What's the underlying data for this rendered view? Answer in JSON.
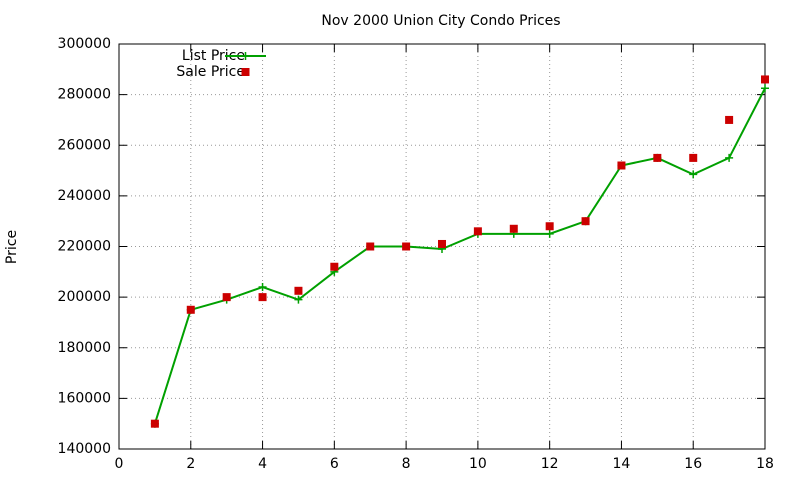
{
  "chart_data": {
    "type": "line",
    "title": "Nov 2000 Union City Condo Prices",
    "y_label": "Price",
    "x": [
      1,
      2,
      3,
      4,
      5,
      6,
      7,
      8,
      9,
      10,
      11,
      12,
      13,
      14,
      15,
      16,
      17,
      18
    ],
    "series": [
      {
        "name": "List Price",
        "color": "#00a000",
        "mode": "linespoints",
        "values": [
          150000,
          195000,
          199000,
          204000,
          199000,
          210000,
          220000,
          220000,
          219000,
          225000,
          225000,
          225000,
          230000,
          252000,
          255000,
          248500,
          255000,
          282500
        ]
      },
      {
        "name": "Sale Price",
        "color": "#cc0000",
        "mode": "points",
        "values": [
          150000,
          195000,
          200000,
          200000,
          202500,
          212000,
          220000,
          220000,
          221000,
          226000,
          227000,
          228000,
          230000,
          252000,
          255000,
          255000,
          270000,
          286000
        ]
      }
    ],
    "xlim": [
      0,
      18
    ],
    "xticks": [
      0,
      2,
      4,
      6,
      8,
      10,
      12,
      14,
      16,
      18
    ],
    "ylim": [
      140000,
      300000
    ],
    "yticks": [
      140000,
      160000,
      180000,
      200000,
      220000,
      240000,
      260000,
      280000,
      300000
    ],
    "grid": true,
    "legend": "top-left"
  }
}
